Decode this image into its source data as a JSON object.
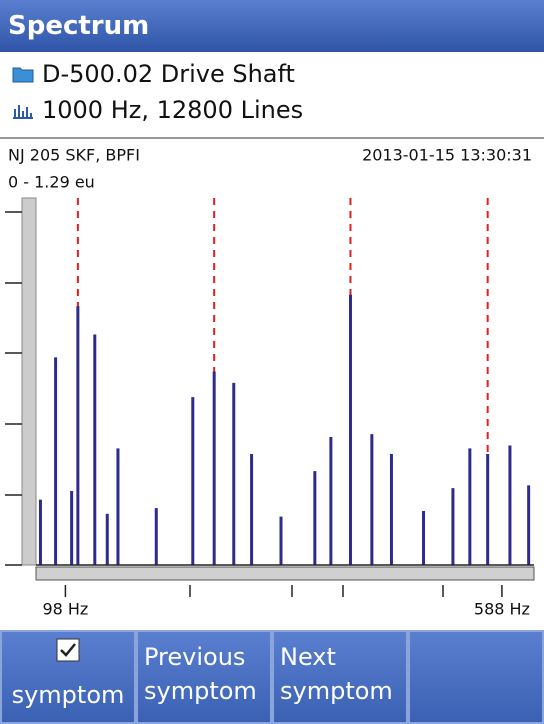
{
  "header": {
    "title": "Spectrum"
  },
  "info": {
    "location": "D-500.02 Drive Shaft",
    "setup": "1000 Hz, 12800 Lines"
  },
  "chart_data": {
    "type": "spectrum",
    "label": "NJ 205 SKF, BPFI",
    "timestamp": "2013-01-15 13:30:31",
    "range_label": "0 - 1.29 eu",
    "color": "#2e2b8c",
    "marker_color": "#e02020",
    "x": [
      70,
      87,
      105,
      112,
      131,
      145,
      157,
      200,
      241,
      265,
      287,
      307,
      340,
      378,
      396,
      418,
      442,
      464,
      500,
      533,
      552,
      572,
      597,
      618
    ],
    "values": [
      0.23,
      0.73,
      0.26,
      0.91,
      0.81,
      0.18,
      0.41,
      0.2,
      0.59,
      0.68,
      0.64,
      0.39,
      0.17,
      0.33,
      0.45,
      0.95,
      0.46,
      0.39,
      0.19,
      0.27,
      0.41,
      0.39,
      0.42,
      0.28
    ],
    "markers": [
      112,
      265,
      418,
      572
    ],
    "xlim": [
      65,
      624
    ],
    "ylim": [
      0,
      1.29
    ],
    "xticks": [
      {
        "value": 98,
        "label": "98 Hz"
      },
      {
        "value": 588,
        "label": "588 Hz"
      }
    ]
  },
  "buttons": [
    "symptom",
    "Previous symptom",
    "Next symptom"
  ]
}
